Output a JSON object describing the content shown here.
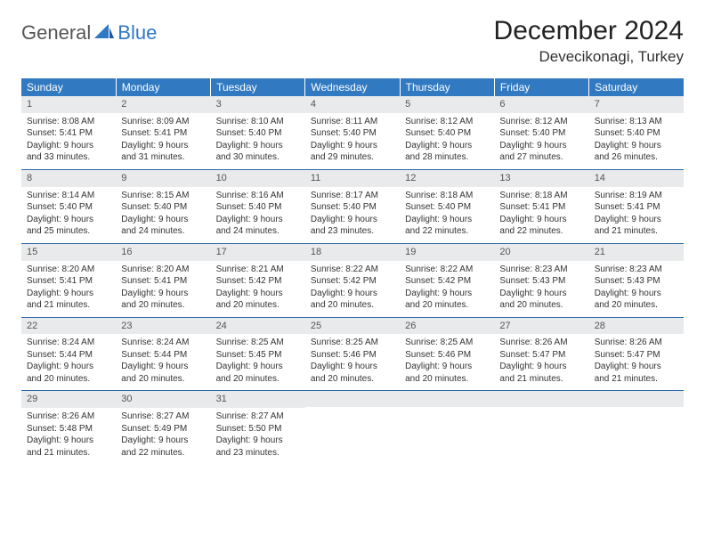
{
  "logo": {
    "general": "General",
    "blue": "Blue"
  },
  "title": "December 2024",
  "location": "Devecikonagi, Turkey",
  "colors": {
    "header_bg": "#317ac2",
    "header_text": "#ffffff",
    "daynum_bg": "#e9eaeb",
    "row_divider": "#2f6aa8",
    "logo_blue": "#2f78c4",
    "body_text": "#333333"
  },
  "day_headers": [
    "Sunday",
    "Monday",
    "Tuesday",
    "Wednesday",
    "Thursday",
    "Friday",
    "Saturday"
  ],
  "days": [
    {
      "n": 1,
      "sr": "8:08 AM",
      "ss": "5:41 PM",
      "dl": "9 hours and 33 minutes."
    },
    {
      "n": 2,
      "sr": "8:09 AM",
      "ss": "5:41 PM",
      "dl": "9 hours and 31 minutes."
    },
    {
      "n": 3,
      "sr": "8:10 AM",
      "ss": "5:40 PM",
      "dl": "9 hours and 30 minutes."
    },
    {
      "n": 4,
      "sr": "8:11 AM",
      "ss": "5:40 PM",
      "dl": "9 hours and 29 minutes."
    },
    {
      "n": 5,
      "sr": "8:12 AM",
      "ss": "5:40 PM",
      "dl": "9 hours and 28 minutes."
    },
    {
      "n": 6,
      "sr": "8:12 AM",
      "ss": "5:40 PM",
      "dl": "9 hours and 27 minutes."
    },
    {
      "n": 7,
      "sr": "8:13 AM",
      "ss": "5:40 PM",
      "dl": "9 hours and 26 minutes."
    },
    {
      "n": 8,
      "sr": "8:14 AM",
      "ss": "5:40 PM",
      "dl": "9 hours and 25 minutes."
    },
    {
      "n": 9,
      "sr": "8:15 AM",
      "ss": "5:40 PM",
      "dl": "9 hours and 24 minutes."
    },
    {
      "n": 10,
      "sr": "8:16 AM",
      "ss": "5:40 PM",
      "dl": "9 hours and 24 minutes."
    },
    {
      "n": 11,
      "sr": "8:17 AM",
      "ss": "5:40 PM",
      "dl": "9 hours and 23 minutes."
    },
    {
      "n": 12,
      "sr": "8:18 AM",
      "ss": "5:40 PM",
      "dl": "9 hours and 22 minutes."
    },
    {
      "n": 13,
      "sr": "8:18 AM",
      "ss": "5:41 PM",
      "dl": "9 hours and 22 minutes."
    },
    {
      "n": 14,
      "sr": "8:19 AM",
      "ss": "5:41 PM",
      "dl": "9 hours and 21 minutes."
    },
    {
      "n": 15,
      "sr": "8:20 AM",
      "ss": "5:41 PM",
      "dl": "9 hours and 21 minutes."
    },
    {
      "n": 16,
      "sr": "8:20 AM",
      "ss": "5:41 PM",
      "dl": "9 hours and 20 minutes."
    },
    {
      "n": 17,
      "sr": "8:21 AM",
      "ss": "5:42 PM",
      "dl": "9 hours and 20 minutes."
    },
    {
      "n": 18,
      "sr": "8:22 AM",
      "ss": "5:42 PM",
      "dl": "9 hours and 20 minutes."
    },
    {
      "n": 19,
      "sr": "8:22 AM",
      "ss": "5:42 PM",
      "dl": "9 hours and 20 minutes."
    },
    {
      "n": 20,
      "sr": "8:23 AM",
      "ss": "5:43 PM",
      "dl": "9 hours and 20 minutes."
    },
    {
      "n": 21,
      "sr": "8:23 AM",
      "ss": "5:43 PM",
      "dl": "9 hours and 20 minutes."
    },
    {
      "n": 22,
      "sr": "8:24 AM",
      "ss": "5:44 PM",
      "dl": "9 hours and 20 minutes."
    },
    {
      "n": 23,
      "sr": "8:24 AM",
      "ss": "5:44 PM",
      "dl": "9 hours and 20 minutes."
    },
    {
      "n": 24,
      "sr": "8:25 AM",
      "ss": "5:45 PM",
      "dl": "9 hours and 20 minutes."
    },
    {
      "n": 25,
      "sr": "8:25 AM",
      "ss": "5:46 PM",
      "dl": "9 hours and 20 minutes."
    },
    {
      "n": 26,
      "sr": "8:25 AM",
      "ss": "5:46 PM",
      "dl": "9 hours and 20 minutes."
    },
    {
      "n": 27,
      "sr": "8:26 AM",
      "ss": "5:47 PM",
      "dl": "9 hours and 21 minutes."
    },
    {
      "n": 28,
      "sr": "8:26 AM",
      "ss": "5:47 PM",
      "dl": "9 hours and 21 minutes."
    },
    {
      "n": 29,
      "sr": "8:26 AM",
      "ss": "5:48 PM",
      "dl": "9 hours and 21 minutes."
    },
    {
      "n": 30,
      "sr": "8:27 AM",
      "ss": "5:49 PM",
      "dl": "9 hours and 22 minutes."
    },
    {
      "n": 31,
      "sr": "8:27 AM",
      "ss": "5:50 PM",
      "dl": "9 hours and 23 minutes."
    }
  ],
  "labels": {
    "sunrise": "Sunrise:",
    "sunset": "Sunset:",
    "daylight": "Daylight:"
  },
  "layout": {
    "columns": 7,
    "trailing_empty": 4,
    "cell_font_size": 10,
    "header_font_size": 12
  }
}
